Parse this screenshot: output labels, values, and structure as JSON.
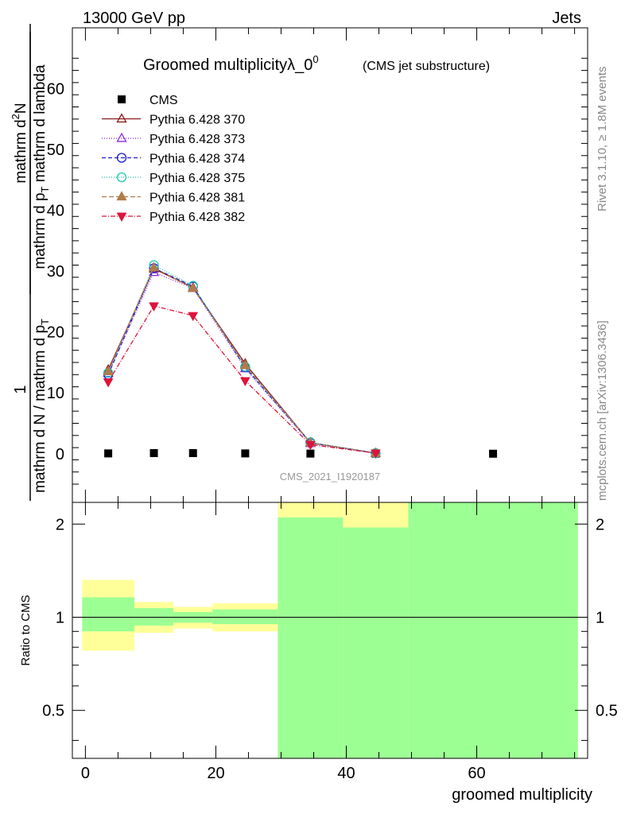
{
  "header": {
    "left": "13000 GeV pp",
    "right": "Jets"
  },
  "side_labels": {
    "rivet": "Rivet 3.1.10, ≥ 1.8M events",
    "mcplots": "mcplots.cern.ch [arXiv:1306.3436]"
  },
  "colors": {
    "cms": "#000000",
    "band_inner": "#9cff94",
    "band_outer": "#ffff99"
  },
  "chart_data": [
    {
      "type": "line",
      "title": "Groomed multiplicityλ_0",
      "title_sup": "0",
      "subtitle": "(CMS jet substructure)",
      "watermark": "CMS_2021_I1920187",
      "ylabel_numerator": "mathrm d²N",
      "ylabel_main": "mathrm d N / mathrm d p",
      "ylabel_sub": "T",
      "ylabel_tail": " mathrm d lambda",
      "ylabel_prefix": "1",
      "ylabel_num_text": "mathrm d",
      "ylabel_num_sup": "2",
      "ylabel_num_tail": "N",
      "ylabel_den_text": "mathrm d p",
      "ylabel_den_sub": "T",
      "ylabel_den_tail": " mathrm d lambda",
      "ylabel_outer": "mathrm d N / mathrm d p",
      "ylabel_outer_sub": "T",
      "ylim": [
        -8,
        70
      ],
      "xlim": [
        -2,
        77
      ],
      "yticks": [
        0,
        10,
        20,
        30,
        40,
        50,
        60
      ],
      "legend_position": "top-left",
      "series": [
        {
          "name": "CMS",
          "color": "#000000",
          "marker": "square",
          "dash": "",
          "x": [
            3.5,
            10.5,
            16.5,
            24.5,
            34.5,
            44.5,
            62.5
          ],
          "y": [
            0.05,
            0.1,
            0.1,
            0.05,
            0.02,
            0.01,
            0.0
          ]
        },
        {
          "name": "Pythia 6.428 370",
          "color": "#8b1a1a",
          "marker": "triangle-open",
          "dash": "",
          "x": [
            3.5,
            10.5,
            16.5,
            24.5,
            34.5,
            44.5
          ],
          "y": [
            13.8,
            30.4,
            27.3,
            14.8,
            1.8,
            0.1
          ]
        },
        {
          "name": "Pythia 6.428 373",
          "color": "#8a2be2",
          "marker": "triangle-open",
          "dash": "1,2",
          "x": [
            3.5,
            10.5,
            16.5,
            24.5,
            34.5,
            44.5
          ],
          "y": [
            13.2,
            29.8,
            27.2,
            14.0,
            1.7,
            0.1
          ]
        },
        {
          "name": "Pythia 6.428 374",
          "color": "#1c1cd6",
          "marker": "circle-open",
          "dash": "5,3",
          "x": [
            3.5,
            10.5,
            16.5,
            24.5,
            34.5,
            44.5
          ],
          "y": [
            13.0,
            30.5,
            27.5,
            14.2,
            1.8,
            0.1
          ]
        },
        {
          "name": "Pythia 6.428 375",
          "color": "#20c8b4",
          "marker": "circle-open",
          "dash": "1,2",
          "x": [
            3.5,
            10.5,
            16.5,
            24.5,
            34.5,
            44.5
          ],
          "y": [
            13.3,
            31.0,
            27.6,
            14.3,
            1.9,
            0.1
          ]
        },
        {
          "name": "Pythia 6.428 381",
          "color": "#b07c4a",
          "marker": "triangle-filled",
          "dash": "6,3",
          "x": [
            3.5,
            10.5,
            16.5,
            24.5,
            34.5,
            44.5
          ],
          "y": [
            13.5,
            30.6,
            27.2,
            14.5,
            1.8,
            0.1
          ]
        },
        {
          "name": "Pythia 6.428 382",
          "color": "#dc143c",
          "marker": "triangle-down-filled",
          "dash": "6,2,1,2",
          "x": [
            3.5,
            10.5,
            16.5,
            24.5,
            34.5,
            44.5
          ],
          "y": [
            11.8,
            24.3,
            22.7,
            12.0,
            1.5,
            0.1
          ]
        }
      ]
    },
    {
      "type": "area",
      "xlabel": "groomed multiplicity",
      "ylabel": "Ratio to CMS",
      "xlim": [
        -2,
        77
      ],
      "ylim": [
        0.35,
        2.35
      ],
      "log_y": true,
      "yticks": [
        0.5,
        1,
        2
      ],
      "xticks": [
        0,
        20,
        40,
        60
      ],
      "reference_line": 1,
      "bands": [
        {
          "x0": -0.5,
          "x1": 7.5,
          "inner": [
            0.9,
            1.16
          ],
          "outer": [
            0.78,
            1.32
          ]
        },
        {
          "x0": 7.5,
          "x1": 13.5,
          "inner": [
            0.94,
            1.07
          ],
          "outer": [
            0.89,
            1.12
          ]
        },
        {
          "x0": 13.5,
          "x1": 19.5,
          "inner": [
            0.96,
            1.04
          ],
          "outer": [
            0.92,
            1.08
          ]
        },
        {
          "x0": 19.5,
          "x1": 29.5,
          "inner": [
            0.95,
            1.06
          ],
          "outer": [
            0.9,
            1.11
          ]
        },
        {
          "x0": 29.5,
          "x1": 39.5,
          "inner": [
            0.35,
            2.1
          ],
          "outer": [
            0.35,
            2.35
          ]
        },
        {
          "x0": 39.5,
          "x1": 49.5,
          "inner": [
            0.35,
            1.95
          ],
          "outer": [
            0.35,
            2.35
          ]
        },
        {
          "x0": 49.5,
          "x1": 75.5,
          "inner": [
            0.35,
            2.35
          ],
          "outer": [
            0.35,
            2.35
          ]
        }
      ]
    }
  ]
}
